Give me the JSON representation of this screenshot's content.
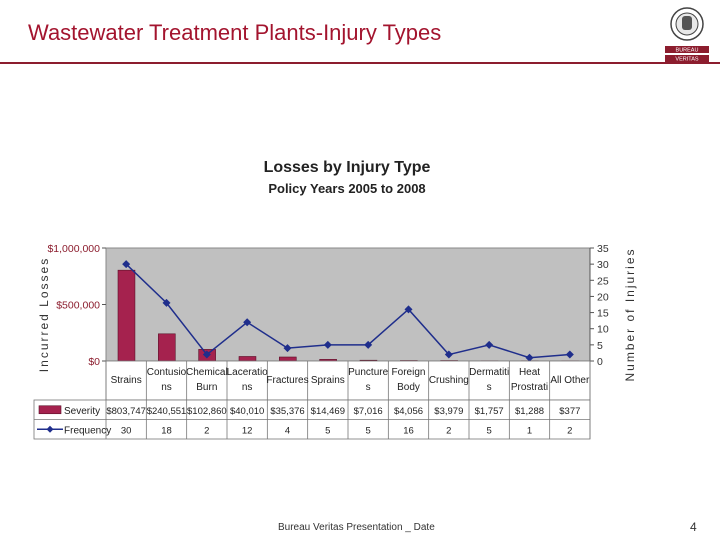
{
  "slide": {
    "title": "Wastewater Treatment Plants-Injury Types",
    "footer": "Bureau Veritas Presentation _ Date",
    "page_number": "4",
    "logo_text": [
      "BUREAU",
      "VERITAS"
    ]
  },
  "colors": {
    "title": "#a3142e",
    "rule": "#8c1d2e",
    "severity_bar": "#a5224e",
    "frequency_line": "#1f2e8c",
    "plot_bg": "#c0c0c0"
  },
  "chart_data": {
    "type": "bar",
    "title": "Losses by Injury Type",
    "subtitle": "Policy Years 2005 to 2008",
    "ylabel": "Incurred Losses",
    "y2label": "Number of Injuries",
    "ylim": [
      0,
      1000000
    ],
    "y2lim": [
      0,
      35
    ],
    "y_ticks": [
      "$1,000,000",
      "$500,000",
      "$0"
    ],
    "y2_ticks": [
      "35",
      "30",
      "25",
      "20",
      "15",
      "10",
      "5",
      "0"
    ],
    "categories": [
      [
        "Strains"
      ],
      [
        "Contusio",
        "ns"
      ],
      [
        "Chemical",
        "Burn"
      ],
      [
        "Laceratio",
        "ns"
      ],
      [
        "Fractures"
      ],
      [
        "Sprains"
      ],
      [
        "Puncture",
        "s"
      ],
      [
        "Foreign",
        "Body"
      ],
      [
        "Crushing"
      ],
      [
        "Dermatiti",
        "s"
      ],
      [
        "Heat",
        "Prostrati"
      ],
      [
        "All Other"
      ]
    ],
    "series": [
      {
        "name": "Severity",
        "type": "bar",
        "axis": "left",
        "values": [
          803747,
          240551,
          102860,
          40010,
          35376,
          14469,
          7016,
          4056,
          3979,
          1757,
          1288,
          377
        ],
        "labels": [
          "$803,747",
          "$240,551",
          "$102,860",
          "$40,010",
          "$35,376",
          "$14,469",
          "$7,016",
          "$4,056",
          "$3,979",
          "$1,757",
          "$1,288",
          "$377"
        ]
      },
      {
        "name": "Frequency",
        "type": "line",
        "axis": "right",
        "values": [
          30,
          18,
          2,
          12,
          4,
          5,
          5,
          16,
          2,
          5,
          1,
          2
        ],
        "labels": [
          "30",
          "18",
          "2",
          "12",
          "4",
          "5",
          "5",
          "16",
          "2",
          "5",
          "1",
          "2"
        ]
      }
    ],
    "grid": false,
    "legend": "data-table"
  }
}
